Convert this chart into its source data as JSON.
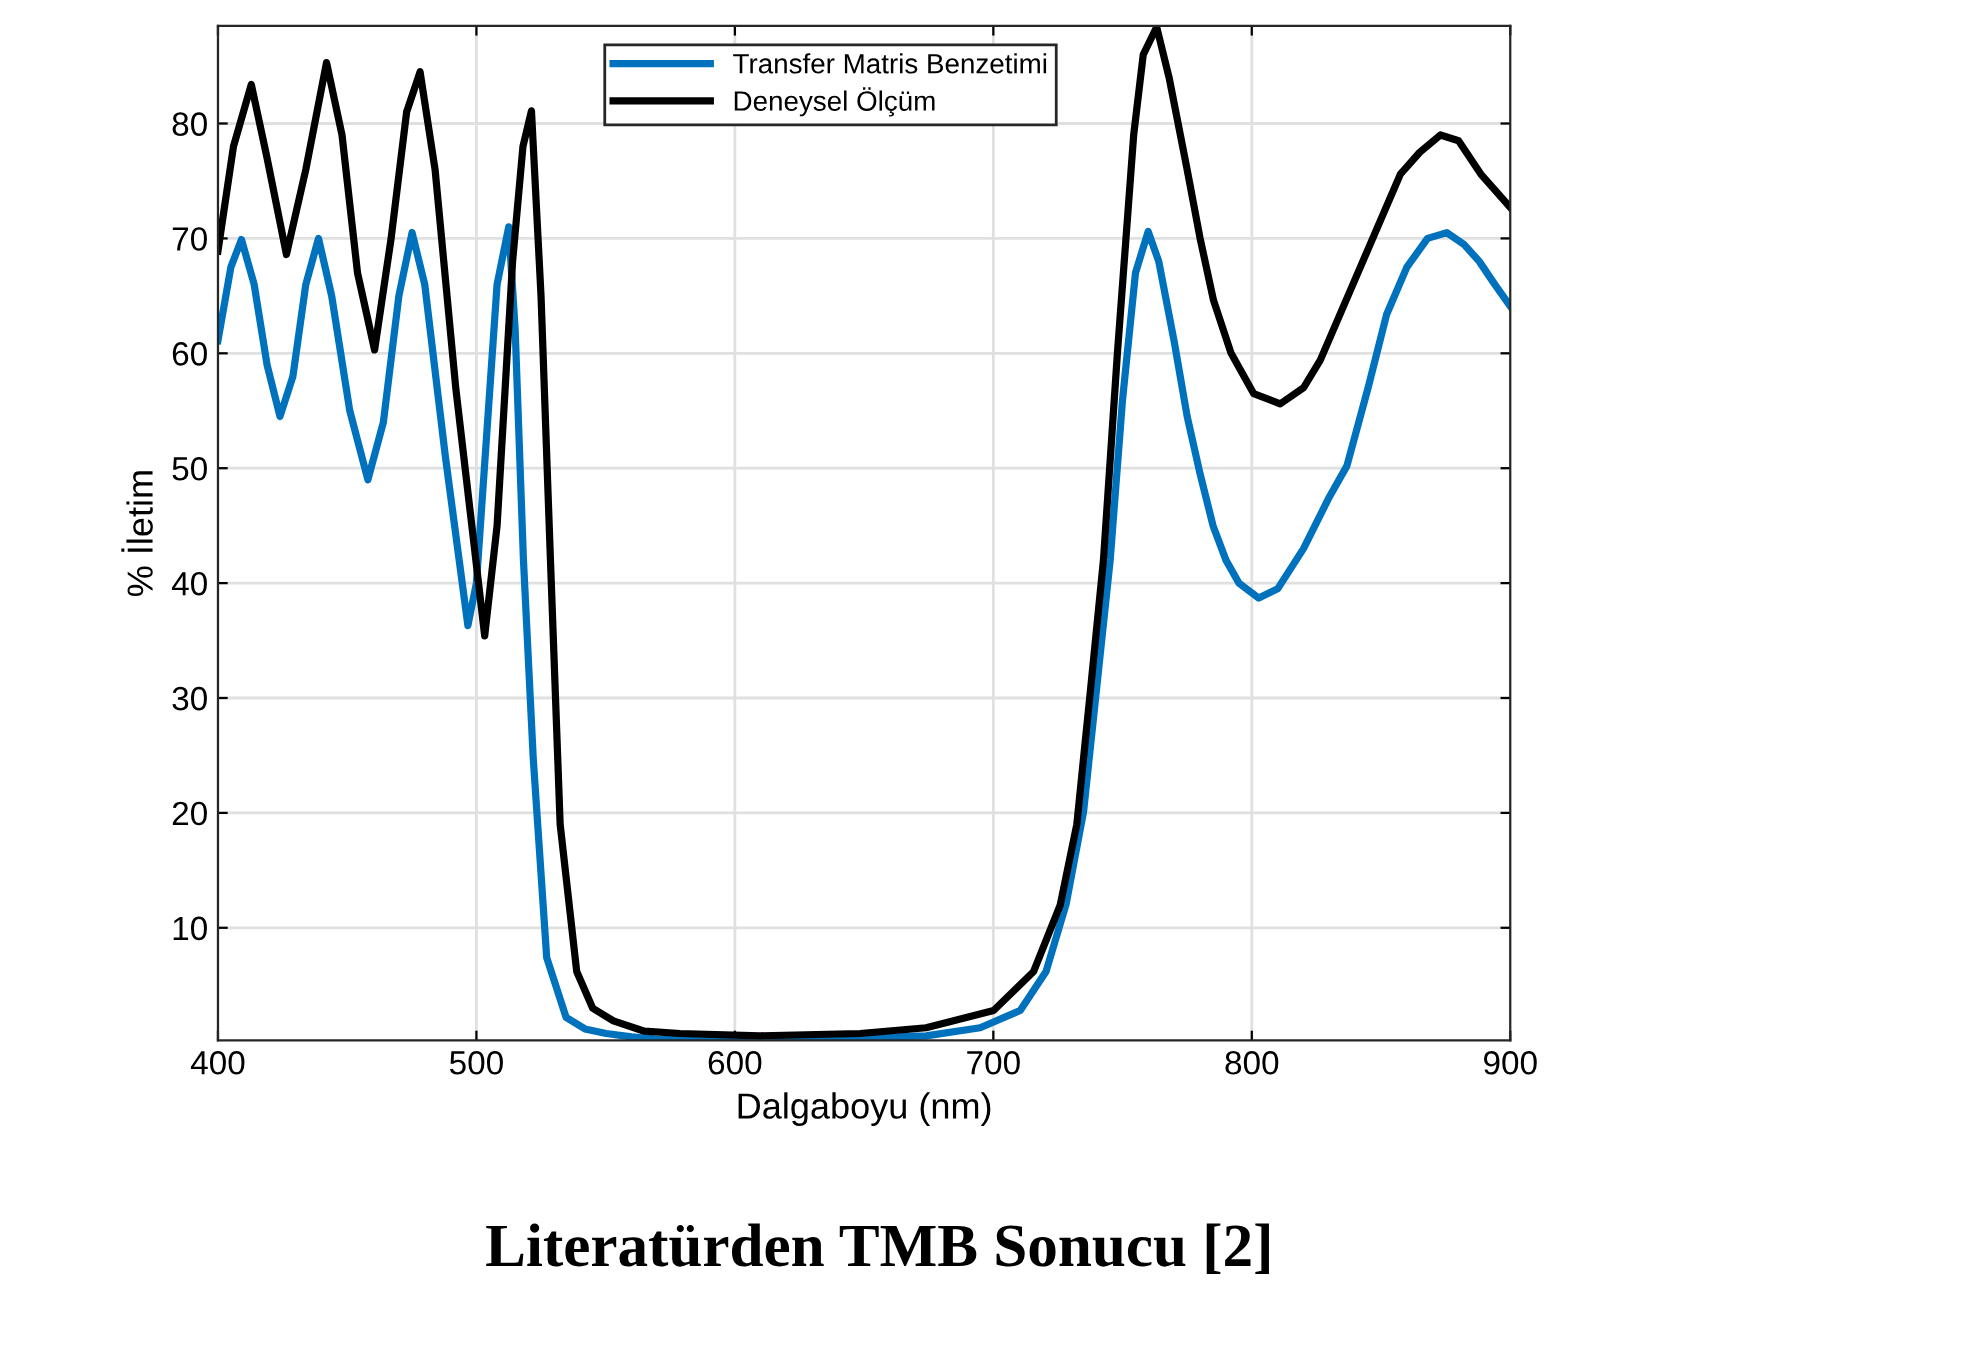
{
  "chart_data": {
    "type": "line",
    "title": "Literatürden TMB Sonucu [2]",
    "xlabel": "Dalgaboyu (nm)",
    "ylabel": "% İletim",
    "xlim": [
      400,
      900
    ],
    "ylim": [
      0.2,
      88.5
    ],
    "xticks": [
      400,
      500,
      600,
      700,
      800,
      900
    ],
    "yticks": [
      10,
      20,
      30,
      40,
      50,
      60,
      70,
      80
    ],
    "grid": true,
    "legend": "top",
    "line_style": "solid",
    "series": [
      {
        "name": "Transfer Matris Benzetimi",
        "color": "#0072bd",
        "x": [
          400,
          405,
          409.1,
          414,
          419,
          424,
          429,
          434,
          438.9,
          444,
          451,
          458,
          464,
          470,
          475.1,
          480,
          488,
          496.7,
          500,
          504,
          508,
          512.5,
          515,
          518.2,
          522,
          527.2,
          534.7,
          542,
          550.2,
          560,
          571,
          625.2,
          674,
          694.9,
          710.4,
          720.4,
          728.2,
          734.9,
          739.8,
          745.2,
          750,
          755,
          759.9,
          764,
          770,
          775,
          780,
          785,
          790,
          795,
          802.7,
          810,
          820,
          830,
          836.8,
          845,
          852.2,
          860,
          868,
          875.5,
          882,
          888,
          894,
          900
        ],
        "values": [
          61.1,
          67.5,
          69.9,
          66,
          59,
          54.5,
          58,
          66,
          70,
          65,
          55,
          49,
          54,
          65,
          70.5,
          66,
          51,
          36.3,
          40,
          53,
          66,
          71,
          62,
          42,
          24.7,
          7.4,
          2.2,
          1.2,
          0.8,
          0.5,
          0.3,
          0.3,
          0.6,
          1.3,
          2.8,
          6.2,
          12.1,
          20.1,
          30.5,
          42,
          56,
          67,
          70.6,
          68,
          61,
          54.5,
          49.5,
          45,
          42,
          40,
          38.7,
          39.5,
          43,
          47.5,
          50.2,
          57,
          63.4,
          67.5,
          70,
          70.5,
          69.5,
          68,
          66,
          64.1
        ]
      },
      {
        "name": "Deneysel Ölçüm",
        "color": "#000000",
        "x": [
          400,
          406,
          412.9,
          419,
          426.5,
          434,
          442,
          448,
          454,
          460.6,
          467,
          473,
          478.2,
          484,
          492,
          503.2,
          508,
          514,
          518,
          521.3,
          525,
          528.5,
          532.4,
          538.8,
          545,
          553,
          565,
          578.8,
          609.8,
          648.5,
          674,
          700.1,
          715.6,
          725.9,
          732.3,
          737.5,
          742.6,
          748,
          754.3,
          758,
          763.2,
          768,
          774.8,
          780,
          785.2,
          792,
          800.7,
          811,
          820,
          826.5,
          842,
          857.5,
          865,
          873,
          880,
          888.6,
          900
        ],
        "values": [
          68.9,
          78,
          83.4,
          77,
          68.6,
          76,
          85.3,
          79,
          67,
          60.3,
          70,
          81,
          84.5,
          76,
          57,
          35.4,
          45,
          68,
          78,
          81.1,
          65,
          42.9,
          19,
          6.2,
          3,
          1.9,
          1,
          0.8,
          0.6,
          0.8,
          1.3,
          2.8,
          6.2,
          12,
          19,
          30.5,
          42,
          60,
          79,
          86,
          88.4,
          84,
          76.2,
          70,
          64.6,
          60,
          56.5,
          55.6,
          57,
          59.4,
          67.5,
          75.6,
          77.5,
          79,
          78.5,
          75.6,
          72.7
        ]
      }
    ]
  }
}
